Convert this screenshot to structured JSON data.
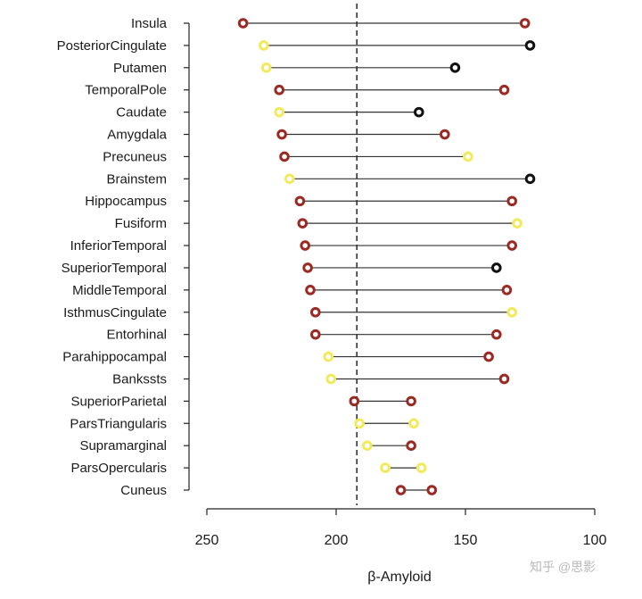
{
  "chart_data": {
    "type": "dumbbell",
    "xlabel": "β-Amyloid",
    "ylabel": "",
    "title": "",
    "xlim": [
      250,
      100
    ],
    "xticks": [
      250,
      200,
      150,
      100
    ],
    "reference_line": 192,
    "grid": false,
    "legend": "none",
    "categories": [
      "Insula",
      "PosteriorCingulate",
      "Putamen",
      "TemporalPole",
      "Caudate",
      "Amygdala",
      "Precuneus",
      "Brainstem",
      "Hippocampus",
      "Fusiform",
      "InferiorTemporal",
      "SuperiorTemporal",
      "MiddleTemporal",
      "IsthmusCingulate",
      "Entorhinal",
      "Parahippocampal",
      "Bankssts",
      "SuperiorParietal",
      "ParsTriangularis",
      "Supramarginal",
      "ParsOpercularis",
      "Cuneus"
    ],
    "left_values": [
      236,
      228,
      227,
      222,
      222,
      221,
      220,
      218,
      214,
      213,
      212,
      211,
      210,
      208,
      208,
      203,
      202,
      193,
      191,
      188,
      181,
      175
    ],
    "right_values": [
      127,
      125,
      154,
      135,
      168,
      158,
      149,
      125,
      132,
      130,
      132,
      138,
      134,
      132,
      138,
      141,
      135,
      171,
      170,
      171,
      167,
      163
    ],
    "left_colors": [
      "#9b2a22",
      "#f2ea5b",
      "#f2ea5b",
      "#9b2a22",
      "#f2ea5b",
      "#9b2a22",
      "#9b2a22",
      "#f2ea5b",
      "#9b2a22",
      "#9b2a22",
      "#9b2a22",
      "#9b2a22",
      "#9b2a22",
      "#9b2a22",
      "#9b2a22",
      "#f2ea5b",
      "#f2ea5b",
      "#9b2a22",
      "#f2ea5b",
      "#f2ea5b",
      "#f2ea5b",
      "#9b2a22"
    ],
    "right_colors": [
      "#9b2a22",
      "#111111",
      "#111111",
      "#9b2a22",
      "#111111",
      "#9b2a22",
      "#f2ea5b",
      "#111111",
      "#9b2a22",
      "#f2ea5b",
      "#9b2a22",
      "#111111",
      "#9b2a22",
      "#f2ea5b",
      "#9b2a22",
      "#9b2a22",
      "#9b2a22",
      "#9b2a22",
      "#f2ea5b",
      "#9b2a22",
      "#f2ea5b",
      "#9b2a22"
    ]
  },
  "watermark": "知乎 @思影"
}
